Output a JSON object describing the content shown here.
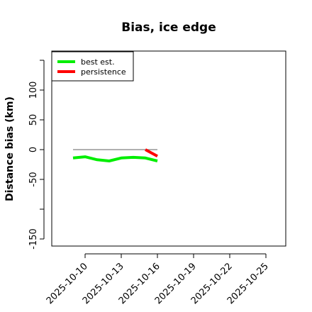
{
  "chart_data": {
    "type": "line",
    "title": "Bias, ice edge",
    "ylabel": "Distance bias (km)",
    "xlabel": "",
    "x_axis_type": "date",
    "xlim": [
      "2025-10-09",
      "2025-10-28"
    ],
    "ylim": [
      -160,
      160
    ],
    "x_ticks": [
      "2025-10-10",
      "2025-10-13",
      "2025-10-16",
      "2025-10-19",
      "2025-10-22",
      "2025-10-25"
    ],
    "y_ticks": [
      -150,
      -50,
      0,
      50,
      100
    ],
    "y_extra_ticks": [
      -100,
      150
    ],
    "legend_position": "top-left",
    "grid": false,
    "reference_line": {
      "y": 0,
      "x_start": "2025-10-09",
      "x_end": "2025-10-16",
      "color": "#808080"
    },
    "series": [
      {
        "name": "best est.",
        "color": "#00ee00",
        "x": [
          "2025-10-09",
          "2025-10-10",
          "2025-10-11",
          "2025-10-12",
          "2025-10-13",
          "2025-10-14",
          "2025-10-15",
          "2025-10-16"
        ],
        "y": [
          -14,
          -12,
          -17,
          -19,
          -14,
          -13,
          -14,
          -19
        ]
      },
      {
        "name": "persistence",
        "color": "#ff0000",
        "x": [
          "2025-10-15",
          "2025-10-16"
        ],
        "y": [
          0,
          -11
        ]
      }
    ]
  }
}
